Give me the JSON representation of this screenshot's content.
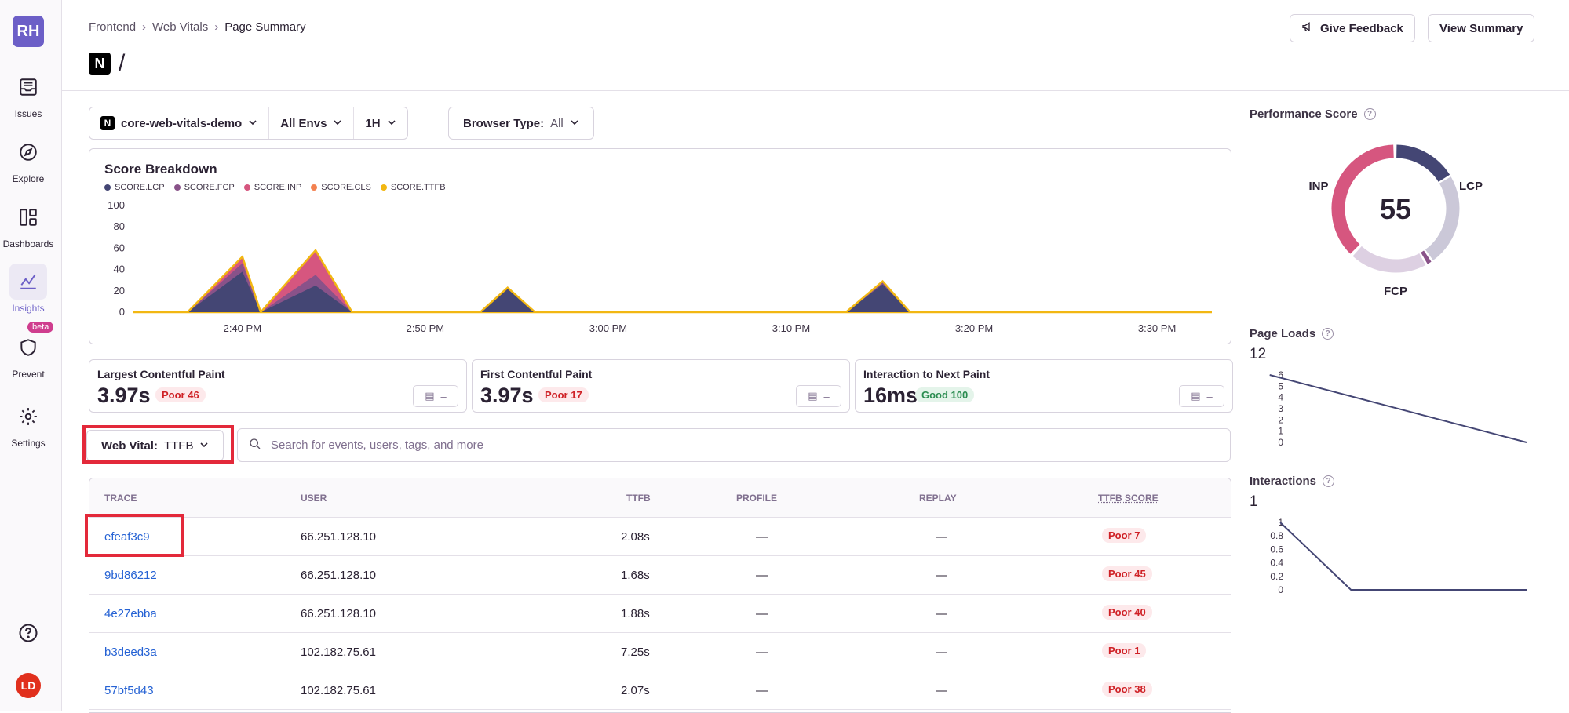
{
  "sidebar": {
    "org_initials": "RH",
    "items": [
      {
        "label": "Issues",
        "icon": "inbox-icon"
      },
      {
        "label": "Explore",
        "icon": "compass-icon"
      },
      {
        "label": "Dashboards",
        "icon": "dashboard-icon"
      },
      {
        "label": "Insights",
        "icon": "chart-line-icon",
        "active": true
      },
      {
        "label": "Prevent",
        "icon": "shield-icon",
        "badge": "beta"
      },
      {
        "label": "Settings",
        "icon": "gear-icon"
      }
    ],
    "user_initials": "LD"
  },
  "header": {
    "breadcrumb": [
      "Frontend",
      "Web Vitals",
      "Page Summary"
    ],
    "title": "/",
    "give_feedback": "Give Feedback",
    "view_summary": "View Summary"
  },
  "filters": {
    "project": "core-web-vitals-demo",
    "env": "All Envs",
    "period": "1H",
    "browser_label": "Browser Type:",
    "browser_value": "All"
  },
  "chart_data": {
    "type": "area",
    "title": "Score Breakdown",
    "series_names": [
      "SCORE.LCP",
      "SCORE.FCP",
      "SCORE.INP",
      "SCORE.CLS",
      "SCORE.TTFB"
    ],
    "colors": [
      "#444674",
      "#895289",
      "#d6567f",
      "#f38150",
      "#f2b712"
    ],
    "y_ticks": [
      "100",
      "80",
      "60",
      "40",
      "20",
      "0"
    ],
    "ylim": [
      0,
      100
    ],
    "x_ticks": [
      "2:40 PM",
      "2:50 PM",
      "3:00 PM",
      "3:10 PM",
      "3:20 PM",
      "3:30 PM"
    ],
    "xlim": [
      -6,
      53
    ],
    "spikes": [
      {
        "start": -3,
        "peak": 0,
        "end": 1,
        "lcp": 38,
        "fcp": 8,
        "inp": 5,
        "ttfb": 52
      },
      {
        "start": 1,
        "peak": 4,
        "end": 6,
        "lcp": 25,
        "fcp": 10,
        "inp": 22,
        "ttfb": 58
      },
      {
        "start": 13,
        "peak": 14.5,
        "end": 16,
        "lcp": 22,
        "fcp": 0,
        "inp": 0,
        "ttfb": 23
      },
      {
        "start": 33,
        "peak": 35,
        "end": 36.5,
        "lcp": 26,
        "fcp": 2,
        "inp": 0,
        "ttfb": 29
      }
    ]
  },
  "metrics": [
    {
      "label": "Largest Contentful Paint",
      "value": "3.97s",
      "badge": "Poor 46",
      "status": "poor"
    },
    {
      "label": "First Contentful Paint",
      "value": "3.97s",
      "badge": "Poor 17",
      "status": "poor"
    },
    {
      "label": "Interaction to Next Paint",
      "value": "16ms",
      "badge": "Good 100",
      "status": "good"
    }
  ],
  "metric_button_dash": "–",
  "web_vital": {
    "label": "Web Vital:",
    "value": "TTFB"
  },
  "search": {
    "placeholder": "Search for events, users, tags, and more"
  },
  "table": {
    "columns": [
      "TRACE",
      "USER",
      "TTFB",
      "PROFILE",
      "REPLAY",
      "TTFB SCORE"
    ],
    "rows": [
      {
        "trace": "efeaf3c9",
        "user": "66.251.128.10",
        "ttfb": "2.08s",
        "profile": "—",
        "replay": "—",
        "score": "Poor 7"
      },
      {
        "trace": "9bd86212",
        "user": "66.251.128.10",
        "ttfb": "1.68s",
        "profile": "—",
        "replay": "—",
        "score": "Poor 45"
      },
      {
        "trace": "4e27ebba",
        "user": "66.251.128.10",
        "ttfb": "1.88s",
        "profile": "—",
        "replay": "—",
        "score": "Poor 40"
      },
      {
        "trace": "b3deed3a",
        "user": "102.182.75.61",
        "ttfb": "7.25s",
        "profile": "—",
        "replay": "—",
        "score": "Poor 1"
      },
      {
        "trace": "57bf5d43",
        "user": "102.182.75.61",
        "ttfb": "2.07s",
        "profile": "—",
        "replay": "—",
        "score": "Poor 38"
      }
    ]
  },
  "side": {
    "performance_title": "Performance Score",
    "score": "55",
    "ring_labels": [
      "INP",
      "LCP",
      "FCP"
    ],
    "ring_colors": {
      "lcp": "#444674",
      "lcp_track": "#cbc8d8",
      "fcp": "#ddd0e2",
      "cls": "#895289",
      "inp": "#d6567f"
    },
    "page_loads_title": "Page Loads",
    "page_loads_value": "12",
    "page_loads_ticks": [
      "6",
      "5",
      "4",
      "3",
      "2",
      "1",
      "0"
    ],
    "page_loads_series": [
      6,
      0
    ],
    "interactions_title": "Interactions",
    "interactions_value": "1",
    "interactions_ticks": [
      "1",
      "0.8",
      "0.6",
      "0.4",
      "0.2",
      "0"
    ],
    "interactions_series": [
      1,
      0,
      0,
      0
    ]
  }
}
